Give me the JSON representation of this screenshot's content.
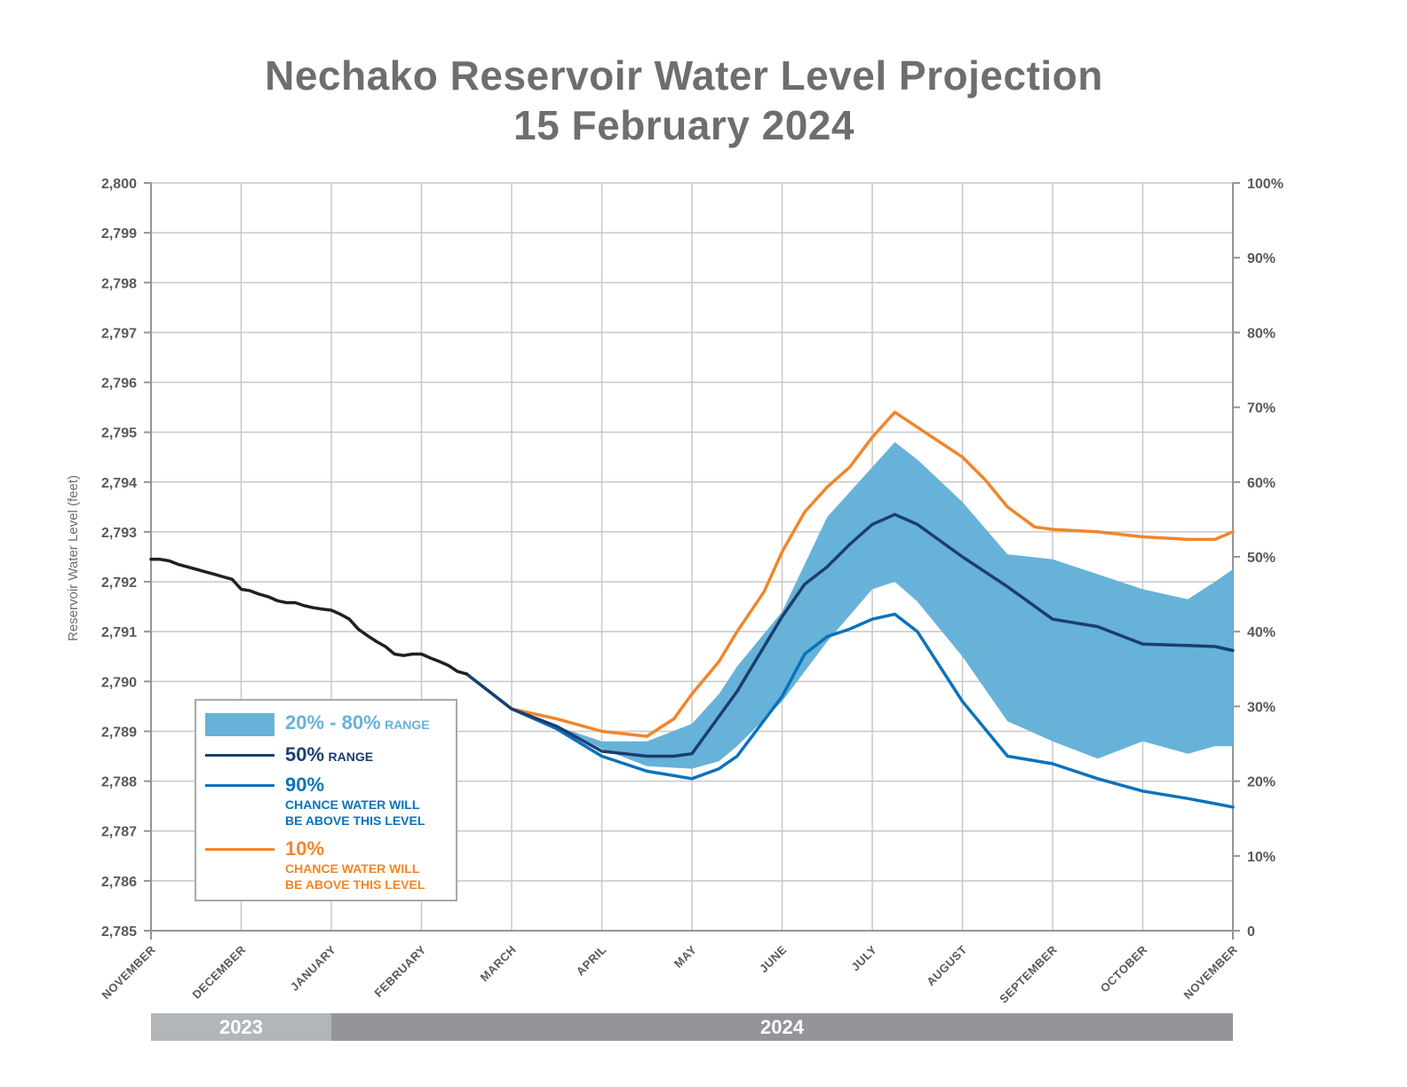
{
  "title_line1": "Nechako Reservoir Water Level Projection",
  "title_line2": "15 February 2024",
  "chart_data": {
    "type": "line",
    "ylabel": "Reservoir Water Level (feet)",
    "y_ticks": [
      "2,800",
      "2,799",
      "2,798",
      "2,797",
      "2,796",
      "2,795",
      "2,794",
      "2,793",
      "2,792",
      "2,791",
      "2,790",
      "2,789",
      "2,788",
      "2,787",
      "2,786",
      "2,785"
    ],
    "y_right_ticks": [
      "100%",
      "90%",
      "80%",
      "70%",
      "60%",
      "50%",
      "40%",
      "30%",
      "20%",
      "10%",
      "0"
    ],
    "ylim": [
      2785,
      2800
    ],
    "y_right_lim": [
      0,
      100
    ],
    "xlim": [
      0,
      12
    ],
    "x_tick_labels": [
      "NOVEMBER",
      "DECEMBER",
      "JANUARY",
      "FEBRUARY",
      "MARCH",
      "APRIL",
      "MAY",
      "JUNE",
      "JULY",
      "AUGUST",
      "SEPTEMBER",
      "OCTOBER",
      "NOVEMBER"
    ],
    "x_unit_note": "x values are months from the start of November 2023",
    "grid": true,
    "years": [
      {
        "label": "2023",
        "start": 0,
        "end": 2
      },
      {
        "label": "2024",
        "start": 2,
        "end": 12
      }
    ],
    "colors": {
      "observed": "#231f20",
      "band": "#67b2d8",
      "p50": "#1b3e6f",
      "p90": "#0a72bc",
      "p10": "#f0862a",
      "grid": "#c7c8ca",
      "axis": "#939598",
      "year2023": "#b3b6b9",
      "year2024": "#939598"
    },
    "series": [
      {
        "key": "observed",
        "x": [
          0,
          0.1,
          0.2,
          0.3,
          0.4,
          0.5,
          0.6,
          0.7,
          0.8,
          0.9,
          1.0,
          1.1,
          1.2,
          1.3,
          1.4,
          1.5,
          1.6,
          1.7,
          1.8,
          1.9,
          2.0,
          2.1,
          2.2,
          2.3,
          2.4,
          2.5,
          2.6,
          2.7,
          2.8,
          2.9,
          3.0,
          3.1,
          3.2,
          3.3,
          3.4,
          3.5
        ],
        "y": [
          2792.45,
          2792.45,
          2792.42,
          2792.35,
          2792.3,
          2792.25,
          2792.2,
          2792.15,
          2792.1,
          2792.05,
          2791.85,
          2791.82,
          2791.75,
          2791.7,
          2791.62,
          2791.58,
          2791.58,
          2791.52,
          2791.48,
          2791.45,
          2791.43,
          2791.35,
          2791.25,
          2791.05,
          2790.92,
          2790.8,
          2790.7,
          2790.55,
          2790.52,
          2790.55,
          2790.55,
          2790.47,
          2790.4,
          2790.32,
          2790.2,
          2790.15
        ]
      },
      {
        "key": "band",
        "x": [
          3.5,
          4.0,
          4.5,
          5.0,
          5.5,
          6.0,
          6.3,
          6.5,
          7.0,
          7.5,
          8.0,
          8.25,
          8.5,
          9.0,
          9.5,
          10.0,
          10.5,
          11.0,
          11.5,
          11.8,
          12.0
        ],
        "upper": [
          2790.15,
          2789.45,
          2789.1,
          2788.8,
          2788.8,
          2789.15,
          2789.75,
          2790.3,
          2791.4,
          2793.3,
          2794.3,
          2794.8,
          2794.45,
          2793.6,
          2792.55,
          2792.45,
          2792.15,
          2791.85,
          2791.65,
          2792.0,
          2792.25
        ],
        "lower": [
          2790.15,
          2789.45,
          2789.1,
          2788.65,
          2788.3,
          2788.25,
          2788.4,
          2788.7,
          2789.6,
          2790.8,
          2791.85,
          2792.0,
          2791.6,
          2790.5,
          2789.2,
          2788.8,
          2788.45,
          2788.8,
          2788.55,
          2788.7,
          2788.7
        ]
      },
      {
        "key": "p50",
        "name": "50%",
        "x": [
          3.5,
          4.0,
          4.5,
          5.0,
          5.5,
          5.8,
          6.0,
          6.3,
          6.5,
          7.0,
          7.25,
          7.5,
          7.75,
          8.0,
          8.25,
          8.5,
          9.0,
          9.5,
          10.0,
          10.5,
          11.0,
          11.5,
          11.8,
          12.0
        ],
        "y": [
          2790.15,
          2789.45,
          2789.1,
          2788.6,
          2788.5,
          2788.5,
          2788.55,
          2789.3,
          2789.8,
          2791.3,
          2791.95,
          2792.3,
          2792.75,
          2793.15,
          2793.35,
          2793.15,
          2792.5,
          2791.9,
          2791.25,
          2791.1,
          2790.75,
          2790.72,
          2790.7,
          2790.62
        ]
      },
      {
        "key": "p90",
        "name": "90%",
        "x": [
          3.5,
          4.0,
          4.5,
          5.0,
          5.5,
          6.0,
          6.3,
          6.5,
          7.0,
          7.25,
          7.5,
          7.75,
          8.0,
          8.25,
          8.5,
          9.0,
          9.5,
          10.0,
          10.5,
          11.0,
          11.5,
          11.8,
          12.0
        ],
        "y": [
          2790.15,
          2789.45,
          2789.05,
          2788.5,
          2788.2,
          2788.05,
          2788.25,
          2788.5,
          2789.7,
          2790.55,
          2790.9,
          2791.05,
          2791.25,
          2791.35,
          2791.0,
          2789.6,
          2788.5,
          2788.35,
          2788.05,
          2787.8,
          2787.65,
          2787.55,
          2787.48
        ]
      },
      {
        "key": "p10",
        "name": "10%",
        "x": [
          4.0,
          4.5,
          5.0,
          5.5,
          5.8,
          6.0,
          6.3,
          6.5,
          6.8,
          7.0,
          7.25,
          7.5,
          7.75,
          8.0,
          8.25,
          8.5,
          9.0,
          9.25,
          9.5,
          9.8,
          10.0,
          10.5,
          11.0,
          11.5,
          11.8,
          12.0
        ],
        "y": [
          2789.45,
          2789.25,
          2789.0,
          2788.9,
          2789.25,
          2789.75,
          2790.4,
          2791.0,
          2791.8,
          2792.6,
          2793.4,
          2793.9,
          2794.3,
          2794.9,
          2795.4,
          2795.1,
          2794.5,
          2794.05,
          2793.5,
          2793.1,
          2793.05,
          2793.0,
          2792.9,
          2792.85,
          2792.85,
          2793.0
        ]
      }
    ],
    "legend": {
      "band_label": "20% - 80%",
      "band_suffix": "RANGE",
      "p50_label": "50%",
      "p50_suffix": "RANGE",
      "p90_label": "90%",
      "p90_sub1": "CHANCE WATER WILL",
      "p90_sub2": "BE ABOVE THIS LEVEL",
      "p10_label": "10%",
      "p10_sub1": "CHANCE WATER WILL",
      "p10_sub2": "BE ABOVE THIS LEVEL"
    }
  }
}
